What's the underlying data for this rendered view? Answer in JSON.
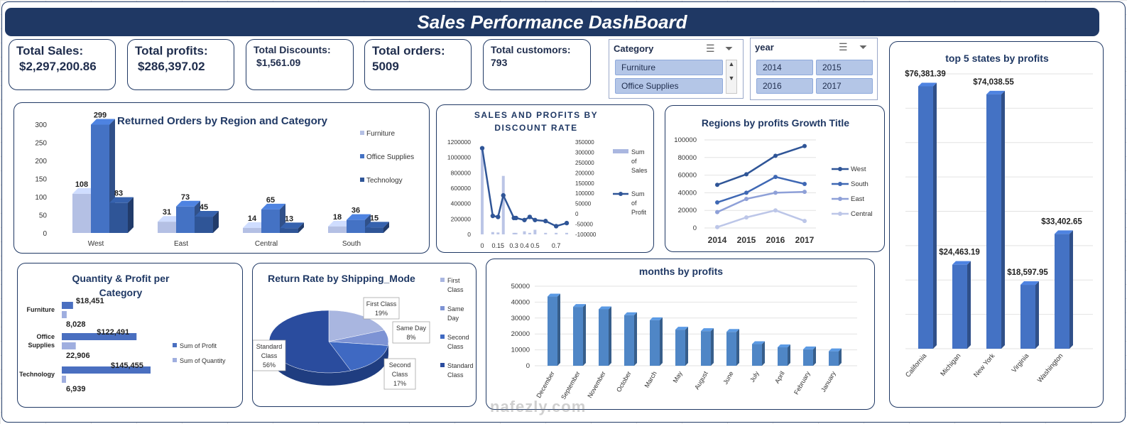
{
  "title": "Sales Performance DashBoard",
  "kpis": [
    {
      "label": "Total Sales:",
      "value": "$2,297,200.86"
    },
    {
      "label": "Total profits:",
      "value": "$286,397.02"
    },
    {
      "label": "Total Discounts:",
      "value": "$1,561.09"
    },
    {
      "label": "Total orders:",
      "value": "5009"
    },
    {
      "label": "Total customors:",
      "value": "793"
    }
  ],
  "slicers": {
    "category": {
      "header": "Category",
      "items": [
        "Furniture",
        "Office Supplies"
      ]
    },
    "year": {
      "header": "year",
      "items": [
        "2014",
        "2015",
        "2016",
        "2017"
      ]
    }
  },
  "watermark": "nafezly.com",
  "colors": {
    "light": "#b4c0e4",
    "mid": "#4472c4",
    "dark": "#2f5597",
    "navy": "#1f3864"
  },
  "chart_data": [
    {
      "id": "returned",
      "type": "bar",
      "title": "Returned Orders by Region and Category",
      "categories": [
        "West",
        "East",
        "Central",
        "South"
      ],
      "series": [
        {
          "name": "Furniture",
          "values": [
            108,
            31,
            14,
            18
          ]
        },
        {
          "name": "Office Supplies",
          "values": [
            299,
            73,
            65,
            36
          ]
        },
        {
          "name": "Technology",
          "values": [
            83,
            45,
            13,
            15
          ]
        }
      ],
      "ylim": [
        0,
        300
      ],
      "yticks": [
        "0",
        "50",
        "100",
        "150",
        "200",
        "250",
        "300"
      ],
      "legend": "right"
    },
    {
      "id": "discount",
      "type": "line",
      "title": "SALES AND PROFITS BY DISCOUNT RATE",
      "x": [
        0,
        0.1,
        0.15,
        0.2,
        0.3,
        0.32,
        0.4,
        0.45,
        0.5,
        0.6,
        0.7,
        0.8
      ],
      "xticks": [
        "0",
        "0.15",
        "0.3",
        "0.4",
        "0.5",
        "0.7"
      ],
      "series": [
        {
          "name": "Sum of Sales",
          "kind": "bar",
          "values": [
            1090000,
            30000,
            25000,
            760000,
            20000,
            20000,
            40000,
            20000,
            60000,
            20000,
            20000,
            20000
          ]
        },
        {
          "name": "Sum of Profit",
          "kind": "line",
          "values": [
            320000,
            -10000,
            -15000,
            90000,
            -20000,
            -20000,
            -30000,
            -15000,
            -30000,
            -35000,
            -60000,
            -45000
          ]
        }
      ],
      "ylim": [
        0,
        1200000
      ],
      "y2lim": [
        -100000,
        350000
      ],
      "yticks": [
        "0",
        "200000",
        "400000",
        "600000",
        "800000",
        "1000000",
        "1200000"
      ],
      "y2ticks": [
        "-100000",
        "-50000",
        "0",
        "50000",
        "100000",
        "150000",
        "200000",
        "250000",
        "300000",
        "350000"
      ],
      "legend": "right"
    },
    {
      "id": "regions",
      "type": "line",
      "title": "Regions by profits Growth Title",
      "categories": [
        "2014",
        "2015",
        "2016",
        "2017"
      ],
      "series": [
        {
          "name": "West",
          "values": [
            49000,
            61000,
            82000,
            93000
          ]
        },
        {
          "name": "South",
          "values": [
            29000,
            40000,
            58000,
            50000
          ]
        },
        {
          "name": "East",
          "values": [
            18000,
            33000,
            40000,
            41000
          ]
        },
        {
          "name": "Central",
          "values": [
            1000,
            12000,
            20000,
            8000
          ]
        }
      ],
      "ylim": [
        0,
        100000
      ],
      "yticks": [
        "0",
        "20000",
        "40000",
        "60000",
        "80000",
        "100000"
      ],
      "legend": "right"
    },
    {
      "id": "states",
      "type": "bar",
      "title": "top 5 states by profits",
      "categories": [
        "California",
        "Michigan",
        "New York",
        "Virginia",
        "Washington"
      ],
      "values": [
        76381.39,
        24463.19,
        74038.55,
        18597.95,
        33402.65
      ],
      "labels": [
        "$76,381.39",
        "$24,463.19",
        "$74,038.55",
        "$18,597.95",
        "$33,402.65"
      ],
      "ylim": [
        0,
        80000
      ]
    },
    {
      "id": "qtyprofit",
      "type": "bar",
      "title": "Quantity & Profit per Category",
      "categories": [
        "Furniture",
        "Office Supplies",
        "Technology"
      ],
      "series": [
        {
          "name": "Sum of Profit",
          "values": [
            18451,
            122491,
            145455
          ],
          "labels": [
            "$18,451",
            "$122,491",
            "$145,455"
          ]
        },
        {
          "name": "Sum of Quantity",
          "values": [
            8028,
            22906,
            6939
          ],
          "labels": [
            "8,028",
            "22,906",
            "6,939"
          ]
        }
      ],
      "legend": "right"
    },
    {
      "id": "shipping",
      "type": "pie",
      "title": "Return Rate by Shipping_Mode",
      "slices": [
        {
          "name": "First Class",
          "value": 19,
          "label": "19%"
        },
        {
          "name": "Same Day",
          "value": 8,
          "label": "8%"
        },
        {
          "name": "Second Class",
          "value": 17,
          "label": "17%"
        },
        {
          "name": "Standard Class",
          "value": 56,
          "label": "56%"
        }
      ],
      "legend": "right"
    },
    {
      "id": "months",
      "type": "bar",
      "title": "months by profits",
      "categories": [
        "December",
        "September",
        "November",
        "October",
        "March",
        "May",
        "August",
        "June",
        "July",
        "April",
        "February",
        "January"
      ],
      "values": [
        43500,
        37000,
        35500,
        31800,
        28600,
        22700,
        21800,
        21300,
        13600,
        11600,
        10300,
        9100
      ],
      "ylim": [
        0,
        50000
      ],
      "yticks": [
        "0",
        "10000",
        "20000",
        "30000",
        "40000",
        "50000"
      ]
    }
  ]
}
